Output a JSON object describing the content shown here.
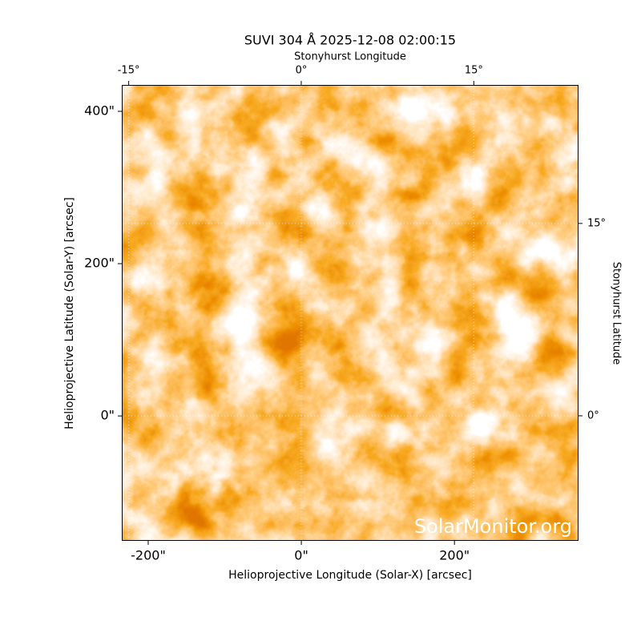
{
  "chart_data": {
    "type": "image",
    "title": "SUVI 304 Å 2025-12-08 02:00:15",
    "xlabel": "Helioprojective Longitude (Solar-X) [arcsec]",
    "ylabel": "Helioprojective Latitude (Solar-Y) [arcsec]",
    "x2label": "Stonyhurst Longitude",
    "y2label": "Stonyhurst Latitude",
    "watermark": "SolarMonitor.org",
    "xlim": [
      -234.5,
      362
    ],
    "ylim": [
      -164,
      434.7
    ],
    "xticks": [
      {
        "value": -200,
        "label": "-200\""
      },
      {
        "value": 0,
        "label": "0\""
      },
      {
        "value": 200,
        "label": "200\""
      }
    ],
    "yticks": [
      {
        "value": 0,
        "label": "0\""
      },
      {
        "value": 200,
        "label": "200\""
      },
      {
        "value": 400,
        "label": "400\""
      }
    ],
    "x2lim": [
      -15.6,
      24.1
    ],
    "x2ticks": [
      {
        "value": -15,
        "label": "-15°"
      },
      {
        "value": 0,
        "label": "0°"
      },
      {
        "value": 15,
        "label": "15°"
      }
    ],
    "y2lim": [
      -9.75,
      25.8
    ],
    "y2ticks": [
      {
        "value": 0,
        "label": "0°"
      },
      {
        "value": 15,
        "label": "15°"
      }
    ],
    "grid": true
  }
}
